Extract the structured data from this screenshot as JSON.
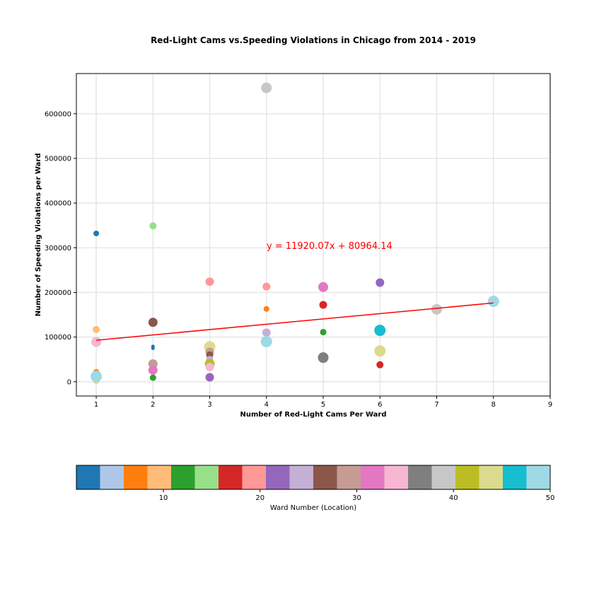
{
  "chart_data": {
    "type": "scatter",
    "title": "Red-Light Cams vs.Speeding Violations in Chicago from 2014 - 2019",
    "xlabel": "Number of Red-Light Cams Per Ward",
    "ylabel": "Number of Speeding Violations per Ward",
    "xlim": [
      0.65,
      9
    ],
    "ylim": [
      -32000,
      690000
    ],
    "xticks": [
      1,
      2,
      3,
      4,
      5,
      6,
      7,
      8,
      9
    ],
    "yticks": [
      0,
      100000,
      200000,
      300000,
      400000,
      500000,
      600000
    ],
    "grid": true,
    "points": [
      {
        "x": 1,
        "y": 332000,
        "ward": 3,
        "size": 4
      },
      {
        "x": 1,
        "y": 117000,
        "ward": 9,
        "size": 5
      },
      {
        "x": 1,
        "y": 89000,
        "ward": 34,
        "size": 7
      },
      {
        "x": 1,
        "y": 22000,
        "ward": 7,
        "size": 4
      },
      {
        "x": 1,
        "y": 3000,
        "ward": 43,
        "size": 5
      },
      {
        "x": 1,
        "y": 12000,
        "ward": 50,
        "size": 8
      },
      {
        "x": 2,
        "y": 349000,
        "ward": 14,
        "size": 5
      },
      {
        "x": 2,
        "y": 133000,
        "ward": 27,
        "size": 6.5
      },
      {
        "x": 2,
        "y": 79000,
        "ward": 1,
        "size": 2.5
      },
      {
        "x": 2,
        "y": 75000,
        "ward": 1,
        "size": 2.5
      },
      {
        "x": 2,
        "y": 40000,
        "ward": 29,
        "size": 6.5
      },
      {
        "x": 2,
        "y": 26000,
        "ward": 32,
        "size": 6.5
      },
      {
        "x": 2,
        "y": 9000,
        "ward": 12,
        "size": 4.5
      },
      {
        "x": 3,
        "y": 224000,
        "ward": 19,
        "size": 6
      },
      {
        "x": 3,
        "y": 78000,
        "ward": 43,
        "size": 8
      },
      {
        "x": 3,
        "y": 67000,
        "ward": 29,
        "size": 6
      },
      {
        "x": 3,
        "y": 60000,
        "ward": 27,
        "size": 5
      },
      {
        "x": 3,
        "y": 50000,
        "ward": 24,
        "size": 5
      },
      {
        "x": 3,
        "y": 40000,
        "ward": 41,
        "size": 7
      },
      {
        "x": 3,
        "y": 33000,
        "ward": 35,
        "size": 6
      },
      {
        "x": 3,
        "y": 10000,
        "ward": 22,
        "size": 6
      },
      {
        "x": 4,
        "y": 658000,
        "ward": 39,
        "size": 7.5
      },
      {
        "x": 4,
        "y": 213000,
        "ward": 19,
        "size": 5.5
      },
      {
        "x": 4,
        "y": 163000,
        "ward": 7,
        "size": 4
      },
      {
        "x": 4,
        "y": 110000,
        "ward": 24,
        "size": 6
      },
      {
        "x": 4,
        "y": 90000,
        "ward": 50,
        "size": 8
      },
      {
        "x": 5,
        "y": 212000,
        "ward": 32,
        "size": 7
      },
      {
        "x": 5,
        "y": 172000,
        "ward": 17,
        "size": 5.5
      },
      {
        "x": 5,
        "y": 111000,
        "ward": 12,
        "size": 4.5
      },
      {
        "x": 5,
        "y": 54000,
        "ward": 37,
        "size": 7.5
      },
      {
        "x": 6,
        "y": 222000,
        "ward": 22,
        "size": 6
      },
      {
        "x": 6,
        "y": 115000,
        "ward": 47,
        "size": 8
      },
      {
        "x": 6,
        "y": 69000,
        "ward": 44,
        "size": 8
      },
      {
        "x": 6,
        "y": 38000,
        "ward": 17,
        "size": 5
      },
      {
        "x": 7,
        "y": 162000,
        "ward": 40,
        "size": 7.5
      },
      {
        "x": 8,
        "y": 180000,
        "ward": 49,
        "size": 8
      }
    ],
    "regression": {
      "slope": 11920.07,
      "intercept": 80964.14,
      "x_range": [
        1,
        8
      ],
      "color": "#ff0000",
      "equation_label": "y = 11920.07x + 80964.14"
    },
    "colorbar": {
      "label": "Ward Number (Location)",
      "vmin": 1,
      "vmax": 50,
      "ticks": [
        10,
        20,
        30,
        40,
        50
      ],
      "colors": [
        "#1f77b4",
        "#aec7e8",
        "#ff7f0e",
        "#ffbb78",
        "#2ca02c",
        "#98df8a",
        "#d62728",
        "#ff9896",
        "#9467bd",
        "#c5b0d5",
        "#8c564b",
        "#c49c94",
        "#e377c2",
        "#f7b6d2",
        "#7f7f7f",
        "#c7c7c7",
        "#bcbd22",
        "#dbdb8d",
        "#17becf",
        "#9edae5"
      ]
    }
  }
}
